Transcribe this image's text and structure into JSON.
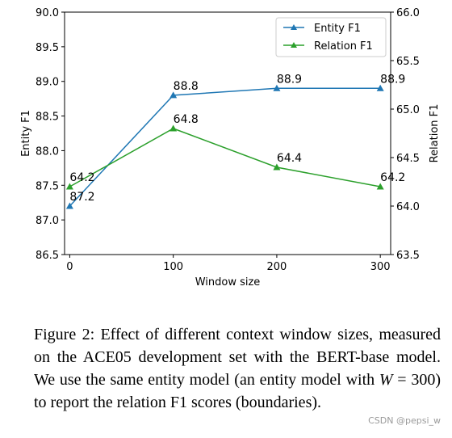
{
  "chart_data": {
    "type": "line",
    "xlabel": "Window size",
    "ylabel_left": "Entity F1",
    "ylabel_right": "Relation F1",
    "x": [
      0,
      100,
      200,
      300
    ],
    "xlim": [
      -5,
      310
    ],
    "xticks": [
      "0",
      "100",
      "200",
      "300"
    ],
    "ylim_left": [
      86.5,
      90.0
    ],
    "yticks_left": [
      "86.5",
      "87.0",
      "87.5",
      "88.0",
      "88.5",
      "89.0",
      "89.5",
      "90.0"
    ],
    "ylim_right": [
      63.5,
      66.0
    ],
    "yticks_right": [
      "63.5",
      "64.0",
      "64.5",
      "65.0",
      "65.5",
      "66.0"
    ],
    "legend_position": "top-right",
    "grid": false,
    "series": [
      {
        "name": "Entity F1",
        "axis": "left",
        "color": "#1f77b4",
        "marker": "triangle",
        "values": [
          87.2,
          88.8,
          88.9,
          88.9
        ],
        "labels": [
          "87.2",
          "88.8",
          "88.9",
          "88.9"
        ]
      },
      {
        "name": "Relation F1",
        "axis": "right",
        "color": "#2ca02c",
        "marker": "triangle",
        "values": [
          64.2,
          64.8,
          64.4,
          64.2
        ],
        "labels": [
          "64.2",
          "64.8",
          "64.4",
          "64.2"
        ]
      }
    ]
  },
  "caption": {
    "prefix": "Figure 2: Effect of different context window sizes, measured on the ACE05 development set with the BERT-base model. We use the same entity model (an entity model with ",
    "math_var": "W",
    "math_rest": " = 300",
    "suffix": ") to report the relation F1 scores (boundaries)."
  },
  "watermark": "CSDN @pepsi_w"
}
